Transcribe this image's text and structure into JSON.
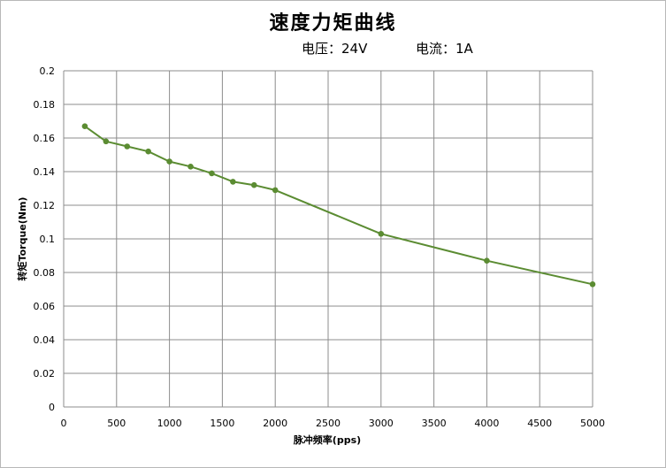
{
  "chart_data": {
    "type": "line",
    "title": "速度力矩曲线",
    "subtitle_left": "电压：24V",
    "subtitle_right": "电流：1A",
    "xlabel": "脉冲频率(pps)",
    "ylabel": "转矩Torque(Nm)",
    "xlim": [
      0,
      5000
    ],
    "ylim": [
      0,
      0.2
    ],
    "x_ticks": [
      "0",
      "500",
      "1000",
      "1500",
      "2000",
      "2500",
      "3000",
      "3500",
      "4000",
      "4500",
      "5000"
    ],
    "y_ticks": [
      "0",
      "0.02",
      "0.04",
      "0.06",
      "0.08",
      "0.1",
      "0.12",
      "0.14",
      "0.16",
      "0.18",
      "0.2"
    ],
    "grid": true,
    "legend": "none",
    "series": [
      {
        "color": "#5b8c32",
        "x": [
          200,
          400,
          600,
          800,
          1000,
          1200,
          1400,
          1600,
          1800,
          2000,
          3000,
          4000,
          5000
        ],
        "y": [
          0.167,
          0.158,
          0.155,
          0.152,
          0.146,
          0.143,
          0.139,
          0.134,
          0.132,
          0.129,
          0.103,
          0.087,
          0.073
        ]
      }
    ]
  }
}
